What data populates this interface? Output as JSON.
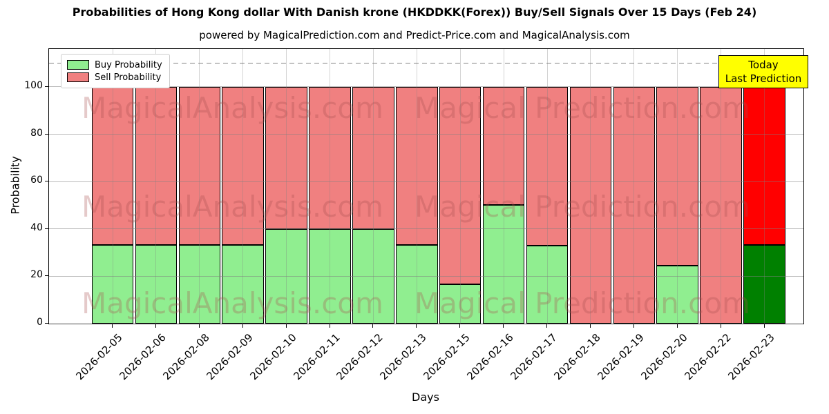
{
  "annotation": {
    "line1": "Today",
    "line2": "Last Prediction",
    "bg": "#ffff00"
  },
  "legend": {
    "position": "upper-left",
    "items": [
      {
        "label": "Buy Probability",
        "color": "#90ee90"
      },
      {
        "label": "Sell Probability",
        "color": "#f08080"
      }
    ]
  },
  "watermarks": {
    "left_text": "MagicalAnalysis.com",
    "right_text": "Magical Prediction.com"
  },
  "chart_data": {
    "type": "bar",
    "stacked": true,
    "title": "Probabilities of Hong Kong dollar With Danish krone (HKDDKK(Forex)) Buy/Sell Signals Over 15 Days (Feb 24)",
    "subtitle": "powered by MagicalPrediction.com and Predict-Price.com and MagicalAnalysis.com",
    "xlabel": "Days",
    "ylabel": "Probability",
    "ylim": [
      0,
      116
    ],
    "yticks": [
      0,
      20,
      40,
      60,
      80,
      100
    ],
    "grid": true,
    "dashed_line_y": 110,
    "categories": [
      "2026-02-05",
      "2026-02-06",
      "2026-02-08",
      "2026-02-09",
      "2026-02-10",
      "2026-02-11",
      "2026-02-12",
      "2026-02-13",
      "2026-02-15",
      "2026-02-16",
      "2026-02-17",
      "2026-02-18",
      "2026-02-19",
      "2026-02-20",
      "2026-02-22",
      "2026-02-23"
    ],
    "series": [
      {
        "name": "Buy Probability",
        "color": "#90ee90",
        "values": [
          33.33,
          33.33,
          33.33,
          33.33,
          40,
          40,
          40,
          33.33,
          16.67,
          50,
          33,
          0,
          0,
          24.5,
          0,
          33.33
        ]
      },
      {
        "name": "Sell Probability",
        "color": "#f08080",
        "values": [
          66.67,
          66.67,
          66.67,
          66.67,
          60,
          60,
          60,
          66.67,
          83.33,
          50,
          67,
          100,
          100,
          75.5,
          100,
          66.67
        ]
      }
    ],
    "highlight_last_bar": {
      "label": "Today / Last Prediction",
      "buy_color": "#008000",
      "sell_color": "#ff0000"
    }
  }
}
